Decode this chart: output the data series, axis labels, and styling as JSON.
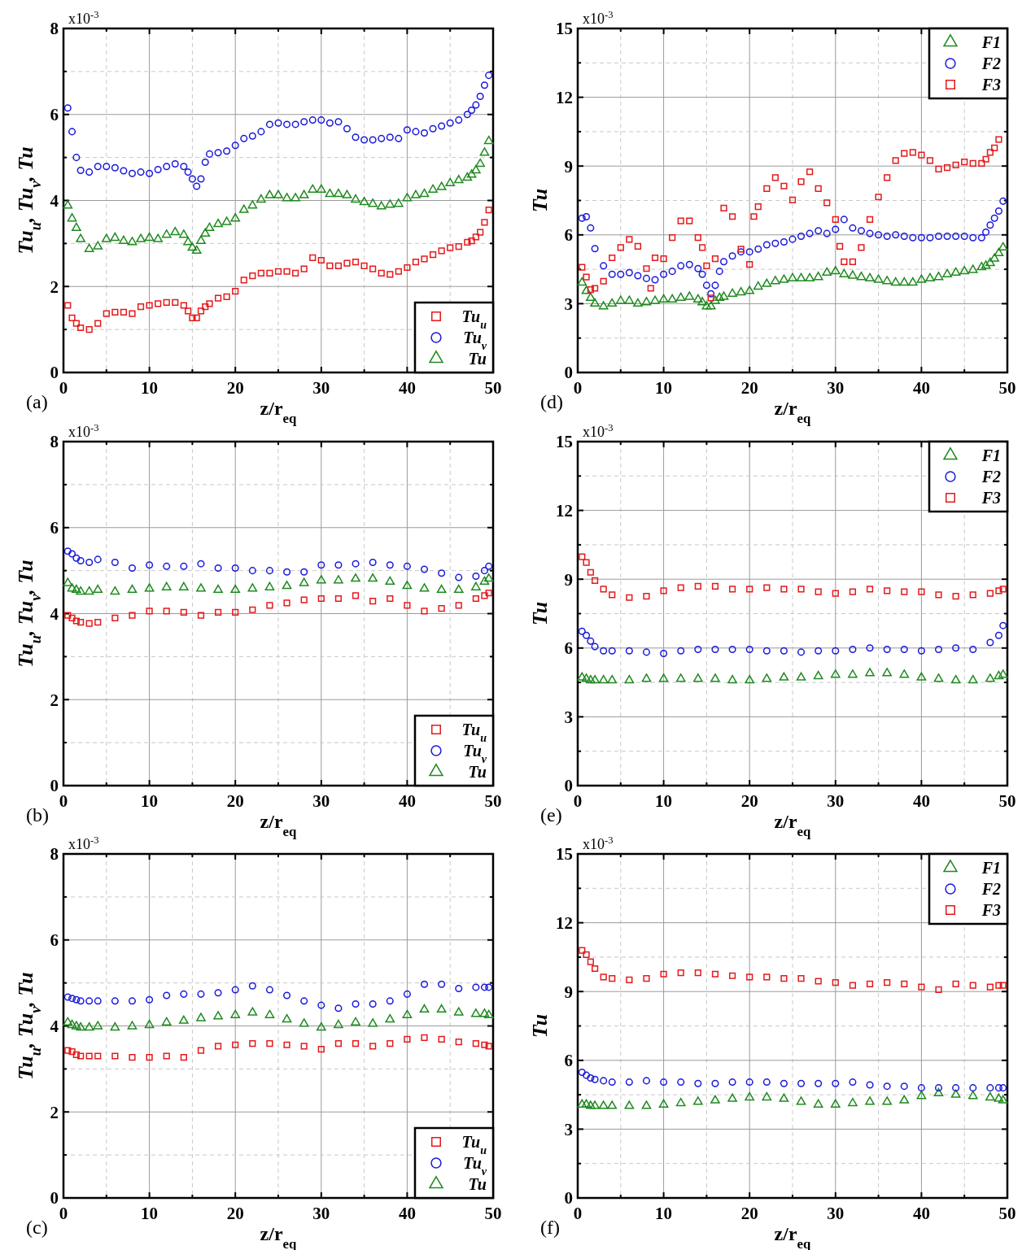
{
  "chart_data": [
    {
      "type": "scatter",
      "xlabel": "z/r$_{eq}$",
      "ylabel": "Tu$_{u}$, Tu$_{v}$, Tu",
      "annotations": [
        "x10$^{-3}$",
        "(a)"
      ],
      "legend": "bottom right",
      "grid": true,
      "xlim": [
        0,
        50
      ],
      "xticks": [
        0,
        {
          "value": 5,
          "label": null
        },
        10,
        {
          "value": 15,
          "label": null
        },
        20,
        {
          "value": 25,
          "label": null
        },
        30,
        {
          "value": 35,
          "label": null
        },
        40,
        {
          "value": 45,
          "label": null
        },
        50
      ],
      "ylim": [
        0,
        8
      ],
      "yticks": [
        0,
        {
          "value": 1,
          "label": null
        },
        2,
        {
          "value": 3,
          "label": null
        },
        4,
        {
          "value": 5,
          "label": null
        },
        6,
        {
          "value": 7,
          "label": null
        },
        8
      ],
      "x": [
        0.5,
        1,
        1.5,
        2,
        3,
        4,
        5,
        6,
        7,
        8,
        9,
        10,
        11,
        12,
        13,
        14,
        14.5,
        15,
        15.5,
        16,
        16.5,
        17,
        18,
        19,
        20,
        21,
        22,
        23,
        24,
        25,
        26,
        27,
        28,
        29,
        30,
        31,
        32,
        33,
        34,
        35,
        36,
        37,
        38,
        39,
        40,
        41,
        42,
        43,
        44,
        45,
        46,
        47,
        47.5,
        48,
        48.5,
        49,
        49.5
      ],
      "series": [
        {
          "name": "Tu$_{u}$",
          "color": "#e41a1c",
          "marker": "square",
          "values": [
            1.56,
            1.27,
            1.14,
            1.04,
            1.0,
            1.14,
            1.37,
            1.4,
            1.4,
            1.37,
            1.53,
            1.56,
            1.6,
            1.63,
            1.63,
            1.56,
            1.43,
            1.27,
            1.27,
            1.43,
            1.53,
            1.6,
            1.73,
            1.76,
            1.89,
            2.15,
            2.25,
            2.31,
            2.31,
            2.35,
            2.35,
            2.31,
            2.41,
            2.67,
            2.61,
            2.48,
            2.48,
            2.54,
            2.57,
            2.48,
            2.41,
            2.31,
            2.28,
            2.35,
            2.44,
            2.57,
            2.64,
            2.74,
            2.83,
            2.9,
            2.93,
            3.03,
            3.06,
            3.15,
            3.26,
            3.49,
            3.78
          ]
        },
        {
          "name": "Tu$_{v}$",
          "color": "#1a1adb",
          "marker": "circle",
          "values": [
            6.15,
            5.6,
            5.0,
            4.7,
            4.66,
            4.79,
            4.79,
            4.76,
            4.69,
            4.63,
            4.66,
            4.63,
            4.72,
            4.79,
            4.85,
            4.79,
            4.66,
            4.5,
            4.33,
            4.5,
            4.89,
            5.08,
            5.11,
            5.15,
            5.28,
            5.44,
            5.5,
            5.6,
            5.77,
            5.8,
            5.77,
            5.77,
            5.83,
            5.87,
            5.87,
            5.8,
            5.83,
            5.67,
            5.47,
            5.41,
            5.41,
            5.44,
            5.47,
            5.44,
            5.64,
            5.6,
            5.57,
            5.67,
            5.73,
            5.8,
            5.87,
            6.0,
            6.1,
            6.22,
            6.42,
            6.68,
            6.91
          ]
        },
        {
          "name": "Tu",
          "color": "#1f8a1f",
          "marker": "triangle",
          "values": [
            3.88,
            3.58,
            3.36,
            3.1,
            2.87,
            2.93,
            3.1,
            3.13,
            3.06,
            3.03,
            3.1,
            3.13,
            3.1,
            3.2,
            3.26,
            3.2,
            3.03,
            2.9,
            2.83,
            3.06,
            3.23,
            3.36,
            3.45,
            3.5,
            3.58,
            3.78,
            3.88,
            4.02,
            4.12,
            4.12,
            4.05,
            4.05,
            4.12,
            4.25,
            4.25,
            4.15,
            4.15,
            4.12,
            4.02,
            3.96,
            3.92,
            3.86,
            3.9,
            3.92,
            4.05,
            4.12,
            4.15,
            4.25,
            4.31,
            4.4,
            4.47,
            4.53,
            4.6,
            4.7,
            4.85,
            5.11,
            5.38
          ]
        }
      ]
    },
    {
      "type": "scatter",
      "xlabel": "z/r$_{eq}$",
      "ylabel": "Tu",
      "annotations": [
        "x10$^{-3}$",
        "(d)"
      ],
      "legend": "top right",
      "grid": true,
      "xlim": [
        0,
        50
      ],
      "xticks": [
        0,
        {
          "value": 5,
          "label": null
        },
        10,
        {
          "value": 15,
          "label": null
        },
        20,
        {
          "value": 25,
          "label": null
        },
        30,
        {
          "value": 35,
          "label": null
        },
        40,
        {
          "value": 45,
          "label": null
        },
        50
      ],
      "ylim": [
        0,
        15
      ],
      "yticks": [
        0,
        {
          "value": 1.5,
          "label": null
        },
        3,
        {
          "value": 4.5,
          "label": null
        },
        6,
        {
          "value": 7.5,
          "label": null
        },
        9,
        {
          "value": 10.5,
          "label": null
        },
        12,
        {
          "value": 13.5,
          "label": null
        },
        15
      ],
      "x": [
        0.5,
        1,
        1.5,
        2,
        3,
        4,
        5,
        6,
        7,
        8,
        9,
        10,
        11,
        12,
        13,
        14,
        14.5,
        15,
        15.5,
        16,
        16.5,
        17,
        18,
        19,
        20,
        21,
        22,
        23,
        24,
        25,
        26,
        27,
        28,
        29,
        30,
        31,
        32,
        33,
        34,
        35,
        36,
        37,
        38,
        39,
        40,
        41,
        42,
        43,
        44,
        45,
        46,
        47,
        47.5,
        48,
        48.5,
        49,
        49.5
      ],
      "series": [
        {
          "name": "F1",
          "color": "#1f8a1f",
          "marker": "triangle",
          "values": [
            3.92,
            3.55,
            3.25,
            3.0,
            2.88,
            3.0,
            3.12,
            3.12,
            3.0,
            3.06,
            3.12,
            3.18,
            3.18,
            3.25,
            3.3,
            3.18,
            3.06,
            2.88,
            2.88,
            3.12,
            3.25,
            3.3,
            3.43,
            3.49,
            3.55,
            3.74,
            3.86,
            3.98,
            4.04,
            4.1,
            4.1,
            4.1,
            4.16,
            4.35,
            4.41,
            4.28,
            4.22,
            4.16,
            4.1,
            4.04,
            3.98,
            3.92,
            3.92,
            3.92,
            4.04,
            4.1,
            4.16,
            4.28,
            4.35,
            4.41,
            4.47,
            4.59,
            4.65,
            4.77,
            4.96,
            5.2,
            5.45
          ]
        },
        {
          "name": "F2",
          "color": "#1a1adb",
          "marker": "circle",
          "values": [
            6.73,
            6.79,
            6.3,
            5.4,
            4.65,
            4.28,
            4.28,
            4.35,
            4.22,
            4.1,
            4.04,
            4.28,
            4.41,
            4.65,
            4.71,
            4.53,
            4.28,
            3.8,
            3.43,
            3.8,
            4.41,
            4.83,
            5.08,
            5.26,
            5.26,
            5.38,
            5.57,
            5.63,
            5.69,
            5.81,
            5.94,
            6.06,
            6.18,
            6.06,
            6.24,
            6.67,
            6.3,
            6.18,
            6.06,
            6.0,
            5.94,
            6.0,
            5.94,
            5.88,
            5.88,
            5.88,
            5.94,
            5.94,
            5.94,
            5.94,
            5.88,
            5.88,
            6.12,
            6.43,
            6.73,
            7.04,
            7.47
          ]
        },
        {
          "name": "F3",
          "color": "#e41a1c",
          "marker": "square",
          "x": [
            0.5,
            1,
            1.5,
            2,
            3,
            4,
            5,
            6,
            7,
            8,
            8.5,
            9,
            10,
            11,
            12,
            13,
            14,
            14.5,
            15,
            15.5,
            16,
            17,
            18,
            19,
            20,
            20.5,
            21,
            22,
            23,
            24,
            25,
            26,
            27,
            28,
            29,
            30,
            30.5,
            31,
            32,
            33,
            34,
            35,
            36,
            37,
            38,
            39,
            40,
            41,
            42,
            43,
            44,
            45,
            46,
            47,
            47.5,
            48,
            48.5,
            49
          ],
          "values": [
            4.59,
            4.16,
            3.61,
            3.67,
            3.98,
            5.0,
            5.45,
            5.8,
            5.5,
            4.53,
            3.67,
            5.0,
            4.96,
            5.88,
            6.61,
            6.61,
            5.88,
            5.45,
            4.65,
            3.25,
            4.96,
            7.17,
            6.8,
            5.38,
            4.71,
            6.8,
            7.23,
            8.02,
            8.5,
            8.13,
            7.52,
            8.32,
            8.75,
            8.02,
            7.4,
            6.67,
            5.5,
            4.83,
            4.83,
            5.45,
            6.67,
            7.65,
            8.5,
            9.24,
            9.55,
            9.6,
            9.48,
            9.24,
            8.87,
            8.93,
            9.05,
            9.18,
            9.12,
            9.12,
            9.3,
            9.6,
            9.79,
            10.16
          ]
        }
      ]
    },
    {
      "type": "scatter",
      "xlabel": "z/r$_{eq}$",
      "ylabel": "Tu$_{u}$, Tu$_{v}$, Tu",
      "annotations": [
        "x10$^{-3}$",
        "(b)"
      ],
      "legend": "bottom right",
      "grid": true,
      "xlim": [
        0,
        50
      ],
      "xticks": [
        0,
        {
          "value": 5,
          "label": null
        },
        10,
        {
          "value": 15,
          "label": null
        },
        20,
        {
          "value": 25,
          "label": null
        },
        30,
        {
          "value": 35,
          "label": null
        },
        40,
        {
          "value": 45,
          "label": null
        },
        50
      ],
      "ylim": [
        0,
        8
      ],
      "yticks": [
        0,
        {
          "value": 1,
          "label": null
        },
        2,
        {
          "value": 3,
          "label": null
        },
        4,
        {
          "value": 5,
          "label": null
        },
        6,
        {
          "value": 7,
          "label": null
        },
        8
      ],
      "x": [
        0.5,
        1,
        1.5,
        2,
        3,
        4,
        6,
        8,
        10,
        12,
        14,
        16,
        18,
        20,
        22,
        24,
        26,
        28,
        30,
        32,
        34,
        36,
        38,
        40,
        42,
        44,
        46,
        48,
        49,
        49.5
      ],
      "series": [
        {
          "name": "Tu$_{u}$",
          "color": "#e41a1c",
          "marker": "square",
          "values": [
            3.96,
            3.9,
            3.83,
            3.8,
            3.77,
            3.8,
            3.9,
            3.96,
            4.06,
            4.06,
            4.03,
            3.96,
            4.03,
            4.03,
            4.09,
            4.19,
            4.25,
            4.32,
            4.35,
            4.35,
            4.42,
            4.29,
            4.35,
            4.19,
            4.06,
            4.12,
            4.19,
            4.35,
            4.42,
            4.48
          ]
        },
        {
          "name": "Tu$_{v}$",
          "color": "#1a1adb",
          "marker": "circle",
          "values": [
            5.45,
            5.39,
            5.29,
            5.23,
            5.19,
            5.26,
            5.19,
            5.06,
            5.13,
            5.1,
            5.1,
            5.16,
            5.06,
            5.06,
            5.0,
            5.0,
            4.97,
            4.97,
            5.13,
            5.13,
            5.16,
            5.19,
            5.13,
            5.1,
            5.03,
            4.94,
            4.84,
            4.87,
            5.0,
            5.1
          ]
        },
        {
          "name": "Tu",
          "color": "#1f8a1f",
          "marker": "triangle",
          "values": [
            4.71,
            4.58,
            4.55,
            4.51,
            4.51,
            4.55,
            4.51,
            4.55,
            4.58,
            4.61,
            4.61,
            4.58,
            4.55,
            4.55,
            4.58,
            4.61,
            4.64,
            4.71,
            4.77,
            4.77,
            4.81,
            4.81,
            4.74,
            4.64,
            4.58,
            4.55,
            4.55,
            4.61,
            4.74,
            4.81
          ]
        }
      ]
    },
    {
      "type": "scatter",
      "xlabel": "z/r$_{eq}$",
      "ylabel": "Tu",
      "annotations": [
        "x10$^{-3}$",
        "(e)"
      ],
      "legend": "top right",
      "grid": true,
      "xlim": [
        0,
        50
      ],
      "xticks": [
        0,
        {
          "value": 5,
          "label": null
        },
        10,
        {
          "value": 15,
          "label": null
        },
        20,
        {
          "value": 25,
          "label": null
        },
        30,
        {
          "value": 35,
          "label": null
        },
        40,
        {
          "value": 45,
          "label": null
        },
        50
      ],
      "ylim": [
        0,
        15
      ],
      "yticks": [
        0,
        {
          "value": 1.5,
          "label": null
        },
        3,
        {
          "value": 4.5,
          "label": null
        },
        6,
        {
          "value": 7.5,
          "label": null
        },
        9,
        {
          "value": 10.5,
          "label": null
        },
        12,
        {
          "value": 13.5,
          "label": null
        },
        15
      ],
      "x": [
        0.5,
        1,
        1.5,
        2,
        3,
        4,
        6,
        8,
        10,
        12,
        14,
        16,
        18,
        20,
        22,
        24,
        26,
        28,
        30,
        32,
        34,
        36,
        38,
        40,
        42,
        44,
        46,
        48,
        49,
        49.5
      ],
      "series": [
        {
          "name": "F1",
          "color": "#1f8a1f",
          "marker": "triangle",
          "values": [
            4.71,
            4.65,
            4.59,
            4.59,
            4.59,
            4.59,
            4.59,
            4.65,
            4.65,
            4.65,
            4.65,
            4.65,
            4.59,
            4.59,
            4.65,
            4.71,
            4.71,
            4.77,
            4.83,
            4.83,
            4.9,
            4.9,
            4.83,
            4.71,
            4.65,
            4.59,
            4.59,
            4.65,
            4.77,
            4.83
          ]
        },
        {
          "name": "F2",
          "color": "#1a1adb",
          "marker": "circle",
          "values": [
            6.73,
            6.55,
            6.3,
            6.06,
            5.88,
            5.88,
            5.88,
            5.82,
            5.76,
            5.88,
            5.94,
            5.94,
            5.94,
            5.94,
            5.88,
            5.88,
            5.82,
            5.88,
            5.88,
            5.94,
            6.0,
            5.94,
            5.94,
            5.88,
            5.94,
            6.0,
            5.94,
            6.24,
            6.55,
            6.98
          ]
        },
        {
          "name": "F3",
          "color": "#e41a1c",
          "marker": "square",
          "values": [
            9.98,
            9.73,
            9.3,
            8.94,
            8.57,
            8.32,
            8.2,
            8.26,
            8.5,
            8.63,
            8.69,
            8.69,
            8.57,
            8.57,
            8.63,
            8.57,
            8.57,
            8.45,
            8.38,
            8.45,
            8.57,
            8.5,
            8.45,
            8.45,
            8.32,
            8.26,
            8.32,
            8.38,
            8.5,
            8.57
          ]
        }
      ]
    },
    {
      "type": "scatter",
      "xlabel": "z/r$_{eq}$",
      "ylabel": "Tu$_{u}$, Tu$_{v}$, Tu",
      "annotations": [
        "x10$^{-3}$",
        "(c)"
      ],
      "legend": "bottom right",
      "grid": true,
      "xlim": [
        0,
        50
      ],
      "xticks": [
        0,
        {
          "value": 5,
          "label": null
        },
        10,
        {
          "value": 15,
          "label": null
        },
        20,
        {
          "value": 25,
          "label": null
        },
        30,
        {
          "value": 35,
          "label": null
        },
        40,
        {
          "value": 45,
          "label": null
        },
        50
      ],
      "ylim": [
        0,
        8
      ],
      "yticks": [
        0,
        {
          "value": 1,
          "label": null
        },
        2,
        {
          "value": 3,
          "label": null
        },
        4,
        {
          "value": 5,
          "label": null
        },
        6,
        {
          "value": 7,
          "label": null
        },
        8
      ],
      "x": [
        0.5,
        1,
        1.5,
        2,
        3,
        4,
        6,
        8,
        10,
        12,
        14,
        16,
        18,
        20,
        22,
        24,
        26,
        28,
        30,
        32,
        34,
        36,
        38,
        40,
        42,
        44,
        46,
        48,
        49,
        49.5
      ],
      "series": [
        {
          "name": "Tu$_{u}$",
          "color": "#e41a1c",
          "marker": "square",
          "values": [
            3.43,
            3.4,
            3.33,
            3.3,
            3.3,
            3.3,
            3.3,
            3.27,
            3.27,
            3.3,
            3.27,
            3.43,
            3.53,
            3.56,
            3.59,
            3.59,
            3.56,
            3.53,
            3.46,
            3.59,
            3.59,
            3.53,
            3.59,
            3.69,
            3.73,
            3.69,
            3.63,
            3.59,
            3.56,
            3.53
          ]
        },
        {
          "name": "Tu$_{v}$",
          "color": "#1a1adb",
          "marker": "circle",
          "values": [
            4.67,
            4.64,
            4.61,
            4.58,
            4.58,
            4.58,
            4.58,
            4.58,
            4.61,
            4.71,
            4.74,
            4.74,
            4.77,
            4.84,
            4.93,
            4.84,
            4.71,
            4.58,
            4.48,
            4.41,
            4.51,
            4.51,
            4.58,
            4.74,
            4.97,
            4.97,
            4.87,
            4.9,
            4.9,
            4.9
          ]
        },
        {
          "name": "Tu",
          "color": "#1f8a1f",
          "marker": "triangle",
          "values": [
            4.08,
            4.02,
            3.99,
            3.96,
            3.96,
            3.99,
            3.96,
            3.99,
            4.02,
            4.08,
            4.12,
            4.18,
            4.22,
            4.25,
            4.31,
            4.25,
            4.15,
            4.05,
            3.96,
            4.02,
            4.08,
            4.05,
            4.15,
            4.25,
            4.38,
            4.38,
            4.31,
            4.28,
            4.28,
            4.25
          ]
        }
      ]
    },
    {
      "type": "scatter",
      "xlabel": "z/r$_{eq}$",
      "ylabel": "Tu",
      "annotations": [
        "x10$^{-3}$",
        "(f)"
      ],
      "legend": "top right",
      "grid": true,
      "xlim": [
        0,
        50
      ],
      "xticks": [
        0,
        {
          "value": 5,
          "label": null
        },
        10,
        {
          "value": 15,
          "label": null
        },
        20,
        {
          "value": 25,
          "label": null
        },
        30,
        {
          "value": 35,
          "label": null
        },
        40,
        {
          "value": 45,
          "label": null
        },
        50
      ],
      "ylim": [
        0,
        15
      ],
      "yticks": [
        0,
        {
          "value": 1.5,
          "label": null
        },
        3,
        {
          "value": 4.5,
          "label": null
        },
        6,
        {
          "value": 7.5,
          "label": null
        },
        9,
        {
          "value": 10.5,
          "label": null
        },
        12,
        {
          "value": 13.5,
          "label": null
        },
        15
      ],
      "x": [
        0.5,
        1,
        1.5,
        2,
        3,
        4,
        6,
        8,
        10,
        12,
        14,
        16,
        18,
        20,
        22,
        24,
        26,
        28,
        30,
        32,
        34,
        36,
        38,
        40,
        42,
        44,
        46,
        48,
        49,
        49.5
      ],
      "series": [
        {
          "name": "F1",
          "color": "#1f8a1f",
          "marker": "triangle",
          "values": [
            4.07,
            4.07,
            4.01,
            4.01,
            4.01,
            4.01,
            4.01,
            4.01,
            4.07,
            4.13,
            4.19,
            4.25,
            4.32,
            4.38,
            4.38,
            4.32,
            4.19,
            4.07,
            4.07,
            4.13,
            4.19,
            4.19,
            4.25,
            4.44,
            4.56,
            4.5,
            4.44,
            4.38,
            4.32,
            4.25
          ]
        },
        {
          "name": "F2",
          "color": "#1a1adb",
          "marker": "circle",
          "values": [
            5.48,
            5.35,
            5.23,
            5.17,
            5.11,
            5.05,
            5.05,
            5.11,
            5.05,
            5.05,
            4.99,
            4.99,
            5.05,
            5.05,
            5.05,
            4.99,
            4.99,
            4.99,
            4.99,
            5.05,
            4.93,
            4.87,
            4.87,
            4.8,
            4.8,
            4.8,
            4.8,
            4.8,
            4.8,
            4.8
          ]
        },
        {
          "name": "F3",
          "color": "#e41a1c",
          "marker": "square",
          "values": [
            10.79,
            10.61,
            10.3,
            10.0,
            9.63,
            9.57,
            9.51,
            9.57,
            9.76,
            9.82,
            9.82,
            9.76,
            9.69,
            9.63,
            9.63,
            9.57,
            9.57,
            9.45,
            9.39,
            9.27,
            9.33,
            9.39,
            9.33,
            9.2,
            9.08,
            9.33,
            9.27,
            9.2,
            9.27,
            9.27
          ]
        }
      ]
    }
  ]
}
